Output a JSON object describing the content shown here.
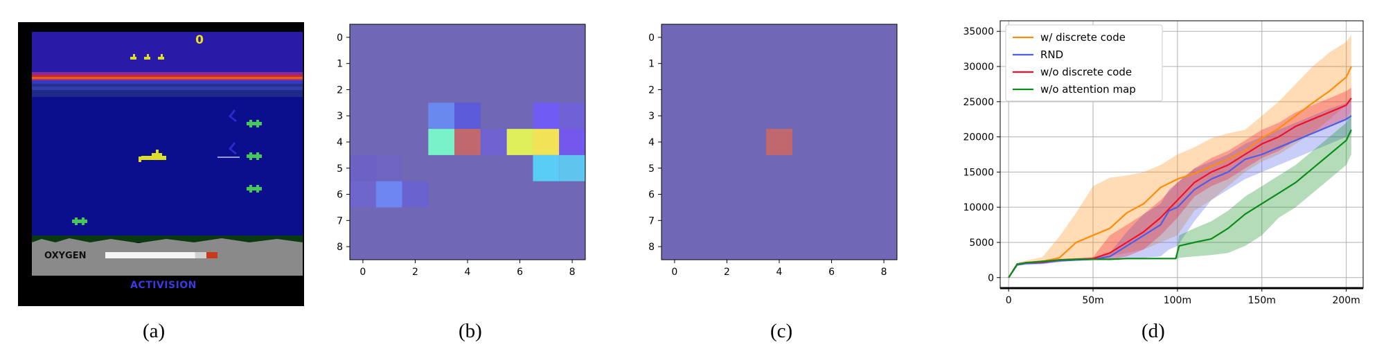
{
  "panel_a": {
    "score": "0",
    "oxygen_label": "OXYGEN",
    "publisher_logo": "ACTIVISION",
    "oxygen_level": 0.8,
    "caption": "(a)"
  },
  "panel_b": {
    "caption": "(b)",
    "chart_data": {
      "type": "heatmap",
      "rows": 9,
      "cols": 9,
      "x_ticks": [
        "0",
        "2",
        "4",
        "6",
        "8"
      ],
      "y_ticks": [
        "0",
        "1",
        "2",
        "3",
        "4",
        "5",
        "6",
        "7",
        "8"
      ],
      "base_color": "#7068b4",
      "cells": [
        {
          "row": 3,
          "col": 3,
          "color": "#6a89ee"
        },
        {
          "row": 3,
          "col": 4,
          "color": "#5b5ad8"
        },
        {
          "row": 3,
          "col": 7,
          "color": "#6e5cf2"
        },
        {
          "row": 3,
          "col": 8,
          "color": "#6e62d6"
        },
        {
          "row": 4,
          "col": 3,
          "color": "#78f2c8"
        },
        {
          "row": 4,
          "col": 4,
          "color": "#c0686e"
        },
        {
          "row": 4,
          "col": 5,
          "color": "#6e62d0"
        },
        {
          "row": 4,
          "col": 6,
          "color": "#dfef5c"
        },
        {
          "row": 4,
          "col": 7,
          "color": "#f2e256"
        },
        {
          "row": 4,
          "col": 8,
          "color": "#7458ee"
        },
        {
          "row": 5,
          "col": 0,
          "color": "#6c62c4"
        },
        {
          "row": 5,
          "col": 1,
          "color": "#6e64c2"
        },
        {
          "row": 5,
          "col": 7,
          "color": "#5acdf7"
        },
        {
          "row": 5,
          "col": 8,
          "color": "#5fc4ee"
        },
        {
          "row": 6,
          "col": 0,
          "color": "#6e66cc"
        },
        {
          "row": 6,
          "col": 1,
          "color": "#6d86f2"
        },
        {
          "row": 6,
          "col": 2,
          "color": "#6a62ce"
        }
      ]
    }
  },
  "panel_c": {
    "caption": "(c)",
    "chart_data": {
      "type": "heatmap",
      "rows": 9,
      "cols": 9,
      "x_ticks": [
        "0",
        "2",
        "4",
        "6",
        "8"
      ],
      "y_ticks": [
        "0",
        "1",
        "2",
        "3",
        "4",
        "5",
        "6",
        "7",
        "8"
      ],
      "base_color": "#7068b4",
      "cells": [
        {
          "row": 4,
          "col": 4,
          "color": "#c0686e"
        }
      ]
    }
  },
  "panel_d": {
    "caption": "(d)",
    "chart_data": {
      "type": "line",
      "x_ticks": [
        "0",
        "50m",
        "100m",
        "150m",
        "200m"
      ],
      "xlim": [
        -5,
        210
      ],
      "ylim": [
        -1500,
        36500
      ],
      "y_ticks": [
        0,
        5000,
        10000,
        15000,
        20000,
        25000,
        30000,
        35000
      ],
      "grid": true,
      "legend": "top-left",
      "series": [
        {
          "name": "w/ discrete code",
          "color": "#ff8c0a",
          "x": [
            0,
            5,
            10,
            20,
            30,
            40,
            50,
            60,
            70,
            80,
            90,
            100,
            110,
            120,
            130,
            140,
            150,
            160,
            170,
            180,
            190,
            200,
            203
          ],
          "y": [
            0,
            1900,
            2100,
            2300,
            2800,
            5000,
            6000,
            7000,
            9200,
            10500,
            12800,
            14000,
            14800,
            15800,
            16800,
            18000,
            19800,
            21200,
            23000,
            24800,
            26500,
            28500,
            30000
          ],
          "band_lo": [
            0,
            1800,
            1900,
            2000,
            2200,
            2700,
            2800,
            3000,
            3500,
            4000,
            5000,
            6000,
            9500,
            11000,
            13000,
            15000,
            16500,
            17500,
            19000,
            20500,
            22500,
            24500,
            25000
          ],
          "band_hi": [
            0,
            2100,
            2400,
            2900,
            5800,
            9200,
            13000,
            14200,
            14500,
            15000,
            16000,
            17500,
            18500,
            19800,
            20500,
            21000,
            23000,
            25000,
            27500,
            30000,
            32000,
            33500,
            34500
          ]
        },
        {
          "name": "RND",
          "color": "#4a5ee8",
          "x": [
            0,
            5,
            10,
            20,
            30,
            40,
            50,
            60,
            70,
            80,
            90,
            95,
            100,
            110,
            120,
            130,
            140,
            150,
            160,
            170,
            180,
            190,
            200,
            203
          ],
          "y": [
            0,
            1800,
            2000,
            2100,
            2400,
            2500,
            2600,
            3000,
            4500,
            6000,
            7500,
            9500,
            10000,
            12500,
            14000,
            15000,
            16800,
            17500,
            18500,
            19500,
            20500,
            21500,
            22500,
            23000
          ],
          "band_lo": [
            0,
            1700,
            1800,
            1900,
            2200,
            2400,
            2500,
            2600,
            2700,
            2800,
            3000,
            4000,
            4500,
            8000,
            11000,
            12500,
            14000,
            15000,
            16000,
            17000,
            18000,
            19000,
            20000,
            20500
          ],
          "band_hi": [
            0,
            1900,
            2200,
            2300,
            2600,
            2700,
            2800,
            3500,
            6500,
            9000,
            10500,
            12500,
            13500,
            15500,
            16500,
            17500,
            19000,
            20000,
            21000,
            22000,
            23000,
            24000,
            24800,
            25200
          ]
        },
        {
          "name": "w/o discrete code",
          "color": "#f0102a",
          "x": [
            0,
            5,
            10,
            20,
            30,
            40,
            50,
            60,
            70,
            80,
            90,
            100,
            110,
            120,
            130,
            140,
            150,
            160,
            170,
            180,
            190,
            200,
            203
          ],
          "y": [
            0,
            1900,
            2100,
            2200,
            2500,
            2600,
            2700,
            3500,
            5000,
            6500,
            8500,
            11000,
            13500,
            15000,
            16000,
            17500,
            19000,
            20000,
            21500,
            22500,
            23500,
            24500,
            25500
          ],
          "band_lo": [
            0,
            1800,
            1950,
            2050,
            2350,
            2450,
            2500,
            2600,
            3000,
            4000,
            6000,
            8500,
            11500,
            13000,
            14000,
            15500,
            17000,
            18000,
            19500,
            20500,
            21500,
            22500,
            23500
          ],
          "band_hi": [
            0,
            2000,
            2250,
            2350,
            2650,
            2750,
            2900,
            6000,
            7500,
            9000,
            11000,
            13500,
            15500,
            17000,
            18000,
            19500,
            21000,
            22000,
            23500,
            24500,
            25500,
            26500,
            27000
          ]
        },
        {
          "name": "w/o attention map",
          "color": "#0a8c18",
          "x": [
            0,
            5,
            10,
            20,
            30,
            40,
            50,
            60,
            70,
            80,
            90,
            99,
            101,
            110,
            120,
            130,
            140,
            150,
            160,
            170,
            180,
            190,
            200,
            203
          ],
          "y": [
            0,
            1900,
            2100,
            2300,
            2500,
            2600,
            2600,
            2600,
            2700,
            2700,
            2700,
            2700,
            4500,
            5000,
            5500,
            7000,
            9000,
            10500,
            12000,
            13500,
            15500,
            17500,
            19500,
            21000
          ],
          "band_lo": [
            0,
            1800,
            2000,
            2200,
            2400,
            2500,
            2500,
            2500,
            2600,
            2600,
            2600,
            2600,
            2800,
            3000,
            3200,
            3500,
            4500,
            6000,
            8500,
            10000,
            12000,
            14000,
            16000,
            17500
          ],
          "band_hi": [
            0,
            2000,
            2200,
            2400,
            2600,
            2700,
            2700,
            2700,
            2800,
            2800,
            2800,
            2800,
            6000,
            7000,
            8000,
            9500,
            11500,
            13000,
            14500,
            16000,
            18000,
            20000,
            22000,
            23500
          ]
        }
      ]
    }
  }
}
